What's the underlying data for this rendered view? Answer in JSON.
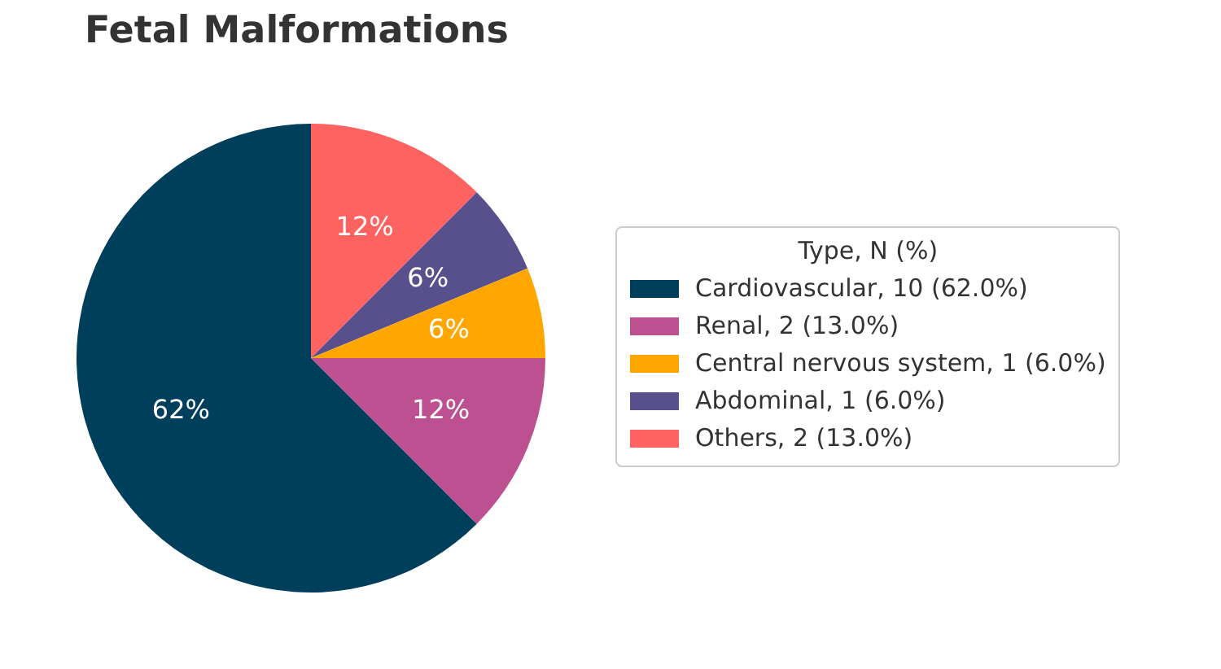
{
  "chart_data": {
    "type": "pie",
    "title": "Fetal Malformations",
    "legend_title": "Type, N (%)",
    "categories": [
      "Cardiovascular, 10 (62.0%)",
      "Renal, 2 (13.0%)",
      "Central nervous system, 1 (6.0%)",
      "Abdominal, 1 (6.0%)",
      "Others, 2 (13.0%)"
    ],
    "values": [
      62.5,
      12.5,
      6.25,
      6.25,
      12.5
    ],
    "colors": [
      "#003f5c",
      "#bc5090",
      "#ffa600",
      "#58508d",
      "#ff6361"
    ],
    "value_labels": [
      "62%",
      "12%",
      "6%",
      "6%",
      "12%"
    ],
    "legend": "right"
  }
}
